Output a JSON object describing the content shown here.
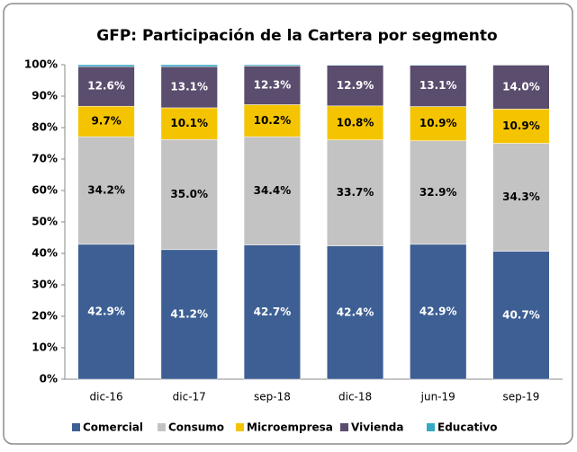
{
  "chart_data": {
    "type": "stacked_bar",
    "title": "GFP: Participación de la Cartera por segmento",
    "categories": [
      "dic-16",
      "dic-17",
      "sep-18",
      "dic-18",
      "jun-19",
      "sep-19"
    ],
    "series": [
      {
        "name": "Comercial",
        "color": "#3d5f94",
        "values": [
          42.9,
          41.2,
          42.7,
          42.4,
          42.9,
          40.7
        ],
        "value_labels": [
          "42.9%",
          "41.2%",
          "42.7%",
          "42.4%",
          "42.9%",
          "40.7%"
        ]
      },
      {
        "name": "Consumo",
        "color": "#c3c3c3",
        "values": [
          34.2,
          35.0,
          34.4,
          33.7,
          32.9,
          34.3
        ],
        "value_labels": [
          "34.2%",
          "35.0%",
          "34.4%",
          "33.7%",
          "32.9%",
          "34.3%"
        ]
      },
      {
        "name": "Microempresa",
        "color": "#f5c400",
        "values": [
          9.7,
          10.1,
          10.2,
          10.8,
          10.9,
          10.9
        ],
        "value_labels": [
          "9.7%",
          "10.1%",
          "10.2%",
          "10.8%",
          "10.9%",
          "10.9%"
        ]
      },
      {
        "name": "Vivienda",
        "color": "#5b4d6e",
        "values": [
          12.6,
          13.1,
          12.3,
          12.9,
          13.1,
          14.0
        ],
        "value_labels": [
          "12.6%",
          "13.1%",
          "12.3%",
          "12.9%",
          "13.1%",
          "14.0%"
        ]
      },
      {
        "name": "Educativo",
        "color": "#35a9c4",
        "values": [
          0.6,
          0.6,
          0.4,
          0.2,
          0.2,
          0.1
        ]
      }
    ],
    "ylim": [
      0,
      100
    ],
    "yticks": [
      {
        "value": 0,
        "label": "0%"
      },
      {
        "value": 10,
        "label": "10%"
      },
      {
        "value": 20,
        "label": "20%"
      },
      {
        "value": 30,
        "label": "30%"
      },
      {
        "value": 40,
        "label": "40%"
      },
      {
        "value": 50,
        "label": "50%"
      },
      {
        "value": 60,
        "label": "60%"
      },
      {
        "value": 70,
        "label": "70%"
      },
      {
        "value": 80,
        "label": "80%"
      },
      {
        "value": 90,
        "label": "90%"
      },
      {
        "value": 100,
        "label": "100%"
      }
    ],
    "grid": false,
    "legend": "bottom"
  }
}
